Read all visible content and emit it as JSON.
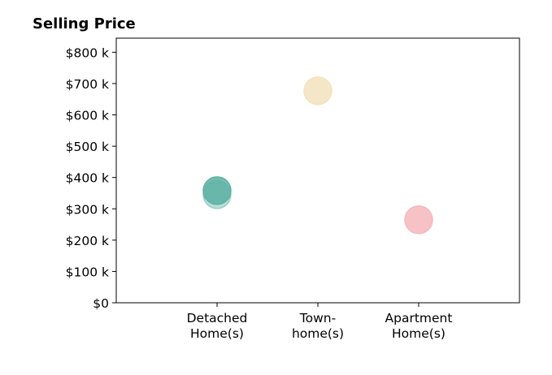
{
  "chart_data": {
    "type": "scatter",
    "title": "Selling Price",
    "xlabel": "",
    "ylabel": "",
    "categories": [
      [
        "Detached",
        "Home(s)"
      ],
      [
        "Town-",
        "home(s)"
      ],
      [
        "Apartment",
        "Home(s)"
      ]
    ],
    "y_ticks": [
      {
        "value": 0,
        "label": "$0"
      },
      {
        "value": 100,
        "label": "$100 k"
      },
      {
        "value": 200,
        "label": "$200 k"
      },
      {
        "value": 300,
        "label": "$300 k"
      },
      {
        "value": 400,
        "label": "$400 k"
      },
      {
        "value": 500,
        "label": "$500 k"
      },
      {
        "value": 600,
        "label": "$600 k"
      },
      {
        "value": 700,
        "label": "$700 k"
      },
      {
        "value": 800,
        "label": "$800 k"
      }
    ],
    "y_unit": "thousands of dollars",
    "ylim": [
      0,
      845
    ],
    "xlim": [
      0,
      4
    ],
    "grid": false,
    "points": [
      {
        "category_index": 0,
        "y": 345,
        "color": "#66b5a8",
        "opacity": 0.45
      },
      {
        "category_index": 0,
        "y": 358,
        "color": "#5bb0a2",
        "opacity": 0.85
      },
      {
        "category_index": 1,
        "y": 677,
        "color": "#f3e2bd",
        "opacity": 0.85
      },
      {
        "category_index": 2,
        "y": 265,
        "color": "#f4b7bb",
        "opacity": 0.85
      }
    ]
  }
}
